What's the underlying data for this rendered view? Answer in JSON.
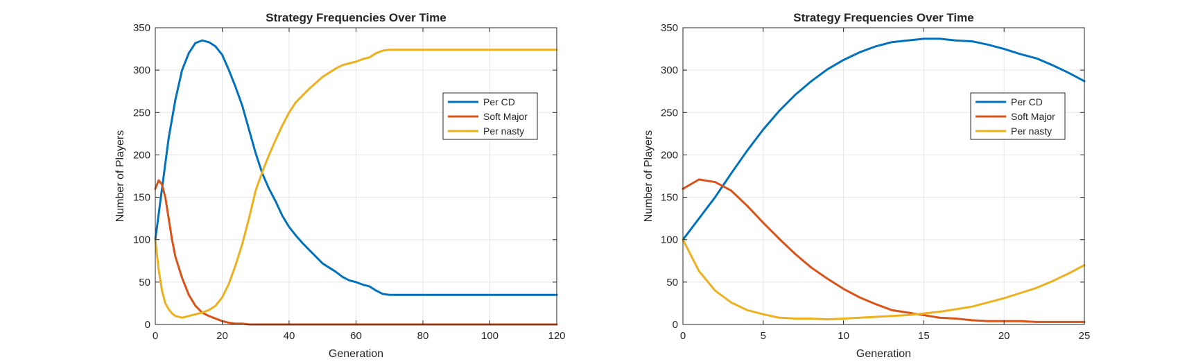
{
  "chart_data": [
    {
      "type": "line",
      "title": "Strategy Frequencies Over Time",
      "xlabel": "Generation",
      "ylabel": "Number of Players",
      "xlim": [
        0,
        120
      ],
      "ylim": [
        0,
        350
      ],
      "xticks": [
        0,
        20,
        40,
        60,
        80,
        100,
        120
      ],
      "yticks": [
        0,
        50,
        100,
        150,
        200,
        250,
        300,
        350
      ],
      "grid": true,
      "legend_position": "right",
      "series": [
        {
          "name": "Per CD",
          "color": "#0072BD",
          "x": [
            0,
            2,
            4,
            6,
            8,
            10,
            12,
            14,
            16,
            18,
            20,
            22,
            24,
            26,
            28,
            30,
            32,
            34,
            36,
            38,
            40,
            42,
            44,
            46,
            48,
            50,
            52,
            54,
            56,
            58,
            60,
            62,
            64,
            66,
            68,
            70,
            120
          ],
          "y": [
            100,
            160,
            220,
            265,
            300,
            320,
            332,
            335,
            333,
            328,
            318,
            300,
            280,
            258,
            230,
            202,
            178,
            160,
            145,
            128,
            115,
            105,
            96,
            88,
            80,
            72,
            67,
            62,
            56,
            52,
            50,
            47,
            45,
            40,
            36,
            35,
            35
          ]
        },
        {
          "name": "Soft Major",
          "color": "#D95319",
          "x": [
            0,
            1,
            2,
            3,
            4,
            5,
            6,
            8,
            10,
            12,
            14,
            16,
            18,
            20,
            22,
            24,
            26,
            28,
            30,
            120
          ],
          "y": [
            160,
            170,
            165,
            150,
            125,
            100,
            80,
            55,
            35,
            22,
            14,
            10,
            7,
            4,
            2,
            1,
            1,
            0,
            0,
            0
          ]
        },
        {
          "name": "Per nasty",
          "color": "#EDB120",
          "x": [
            0,
            1,
            2,
            3,
            4,
            5,
            6,
            8,
            10,
            12,
            14,
            16,
            18,
            20,
            22,
            24,
            26,
            28,
            30,
            32,
            34,
            36,
            38,
            40,
            42,
            44,
            46,
            48,
            50,
            52,
            54,
            56,
            58,
            60,
            62,
            64,
            66,
            68,
            70,
            120
          ],
          "y": [
            100,
            65,
            40,
            25,
            18,
            13,
            10,
            8,
            10,
            12,
            14,
            17,
            22,
            32,
            48,
            70,
            95,
            125,
            158,
            180,
            200,
            218,
            235,
            250,
            262,
            270,
            278,
            285,
            292,
            297,
            302,
            306,
            308,
            310,
            313,
            315,
            320,
            323,
            324,
            324
          ]
        }
      ]
    },
    {
      "type": "line",
      "title": "Strategy Frequencies Over Time",
      "xlabel": "Generation",
      "ylabel": "Number of Players",
      "xlim": [
        0,
        25
      ],
      "ylim": [
        0,
        350
      ],
      "xticks": [
        0,
        5,
        10,
        15,
        20,
        25
      ],
      "yticks": [
        0,
        50,
        100,
        150,
        200,
        250,
        300,
        350
      ],
      "grid": true,
      "legend_position": "right",
      "series": [
        {
          "name": "Per CD",
          "color": "#0072BD",
          "x": [
            0,
            1,
            2,
            3,
            4,
            5,
            6,
            7,
            8,
            9,
            10,
            11,
            12,
            13,
            14,
            15,
            16,
            17,
            18,
            19,
            20,
            21,
            22,
            23,
            24,
            25
          ],
          "y": [
            100,
            125,
            150,
            178,
            205,
            230,
            252,
            271,
            287,
            301,
            312,
            321,
            328,
            333,
            335,
            337,
            337,
            335,
            334,
            330,
            325,
            319,
            314,
            306,
            297,
            287
          ]
        },
        {
          "name": "Soft Major",
          "color": "#D95319",
          "x": [
            0,
            1,
            2,
            3,
            4,
            5,
            6,
            7,
            8,
            9,
            10,
            11,
            12,
            13,
            14,
            15,
            16,
            17,
            18,
            19,
            20,
            21,
            22,
            23,
            24,
            25
          ],
          "y": [
            160,
            171,
            168,
            158,
            140,
            120,
            101,
            83,
            67,
            54,
            42,
            32,
            24,
            17,
            14,
            11,
            8,
            7,
            5,
            4,
            4,
            4,
            3,
            3,
            3,
            3
          ]
        },
        {
          "name": "Per nasty",
          "color": "#EDB120",
          "x": [
            0,
            1,
            2,
            3,
            4,
            5,
            6,
            7,
            8,
            9,
            10,
            11,
            12,
            13,
            14,
            15,
            16,
            17,
            18,
            19,
            20,
            21,
            22,
            23,
            24,
            25
          ],
          "y": [
            100,
            63,
            40,
            26,
            17,
            12,
            8,
            7,
            7,
            6,
            7,
            8,
            9,
            10,
            11,
            13,
            15,
            18,
            21,
            26,
            31,
            37,
            43,
            51,
            60,
            70
          ]
        }
      ]
    }
  ]
}
